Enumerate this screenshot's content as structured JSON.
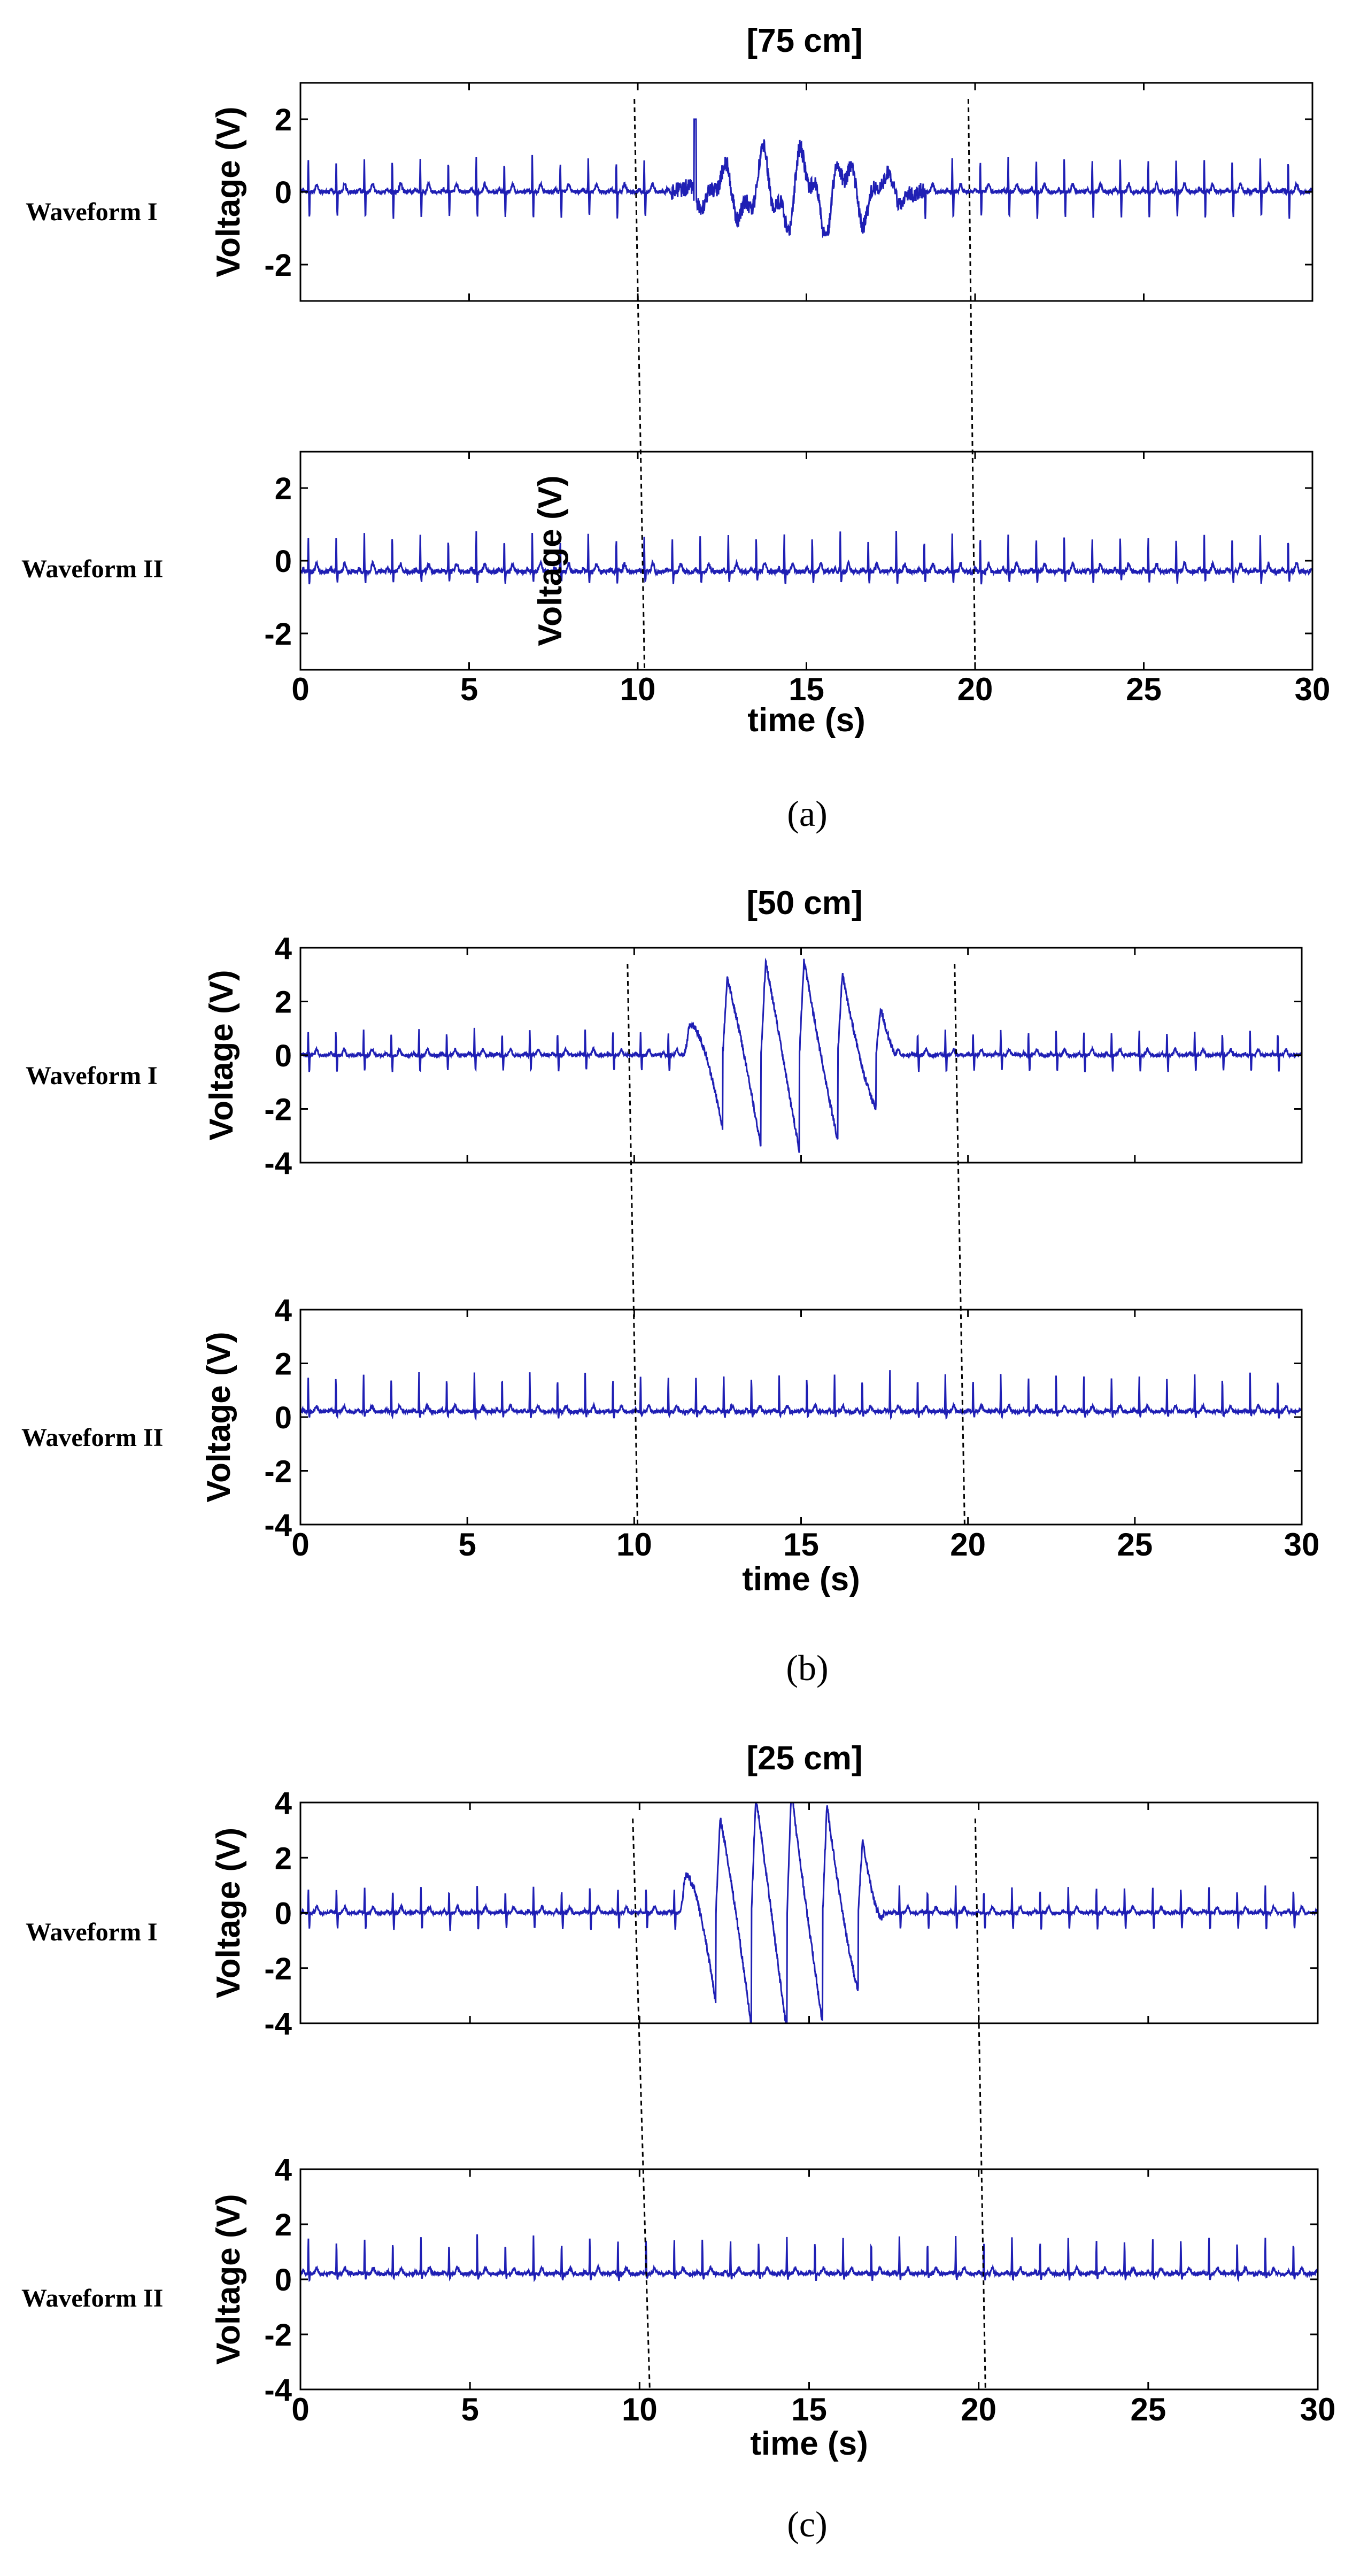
{
  "chart_data": [
    {
      "type": "line",
      "panel_label": "(a)",
      "title": "[75 cm]",
      "xlabel": "time (s)",
      "ylabel": "Voltage (V)",
      "xlim": [
        0,
        30
      ],
      "xticks": [
        0,
        5,
        10,
        15,
        20,
        25,
        30
      ],
      "x_tick_labels": [
        "0",
        "5",
        "10",
        "15",
        "20",
        "25",
        "30"
      ],
      "markers": [
        {
          "name": "marker-start",
          "top_x": 9.9,
          "bottom_x": 10.2
        },
        {
          "name": "marker-end",
          "top_x": 19.8,
          "bottom_x": 20.0
        }
      ],
      "series": [
        {
          "name": "Waveform I",
          "ylim": [
            -3,
            3
          ],
          "yticks": [
            -2,
            0,
            2
          ],
          "y_tick_labels": [
            "-2",
            "0",
            "2"
          ],
          "baseline": 0.0,
          "beat_interval_s": 0.83,
          "r_peak_v": 1.0,
          "s_dip_v": -0.7,
          "noise_v": 0.1,
          "artifact": {
            "start_s": 11.0,
            "end_s": 18.5,
            "min_v": -1.2,
            "max_v": 2.0,
            "pattern": "irregular"
          }
        },
        {
          "name": "Waveform II",
          "ylim": [
            -3,
            3
          ],
          "yticks": [
            -2,
            0,
            2
          ],
          "y_tick_labels": [
            "-2",
            "0",
            "2"
          ],
          "baseline": -0.3,
          "beat_interval_s": 0.83,
          "r_peak_v": 1.1,
          "s_dip_v": -0.3,
          "noise_v": 0.12,
          "artifact": null
        }
      ]
    },
    {
      "type": "line",
      "panel_label": "(b)",
      "title": "[50 cm]",
      "xlabel": "time (s)",
      "ylabel": "Voltage (V)",
      "xlim": [
        0,
        30
      ],
      "xticks": [
        0,
        5,
        10,
        15,
        20,
        25,
        30
      ],
      "x_tick_labels": [
        "0",
        "5",
        "10",
        "15",
        "20",
        "25",
        "30"
      ],
      "markers": [
        {
          "name": "marker-start",
          "top_x": 9.8,
          "bottom_x": 10.1
        },
        {
          "name": "marker-end",
          "top_x": 19.6,
          "bottom_x": 19.9
        }
      ],
      "series": [
        {
          "name": "Waveform I",
          "ylim": [
            -4,
            4
          ],
          "yticks": [
            -4,
            -2,
            0,
            2,
            4
          ],
          "y_tick_labels": [
            "-4",
            "-2",
            "0",
            "2",
            "4"
          ],
          "baseline": 0.0,
          "beat_interval_s": 0.83,
          "r_peak_v": 1.0,
          "s_dip_v": -0.6,
          "noise_v": 0.1,
          "artifact": {
            "start_s": 11.5,
            "end_s": 17.8,
            "min_v": -4.0,
            "max_v": 4.0,
            "pattern": "sawtooth",
            "cycle_s": 1.15,
            "amplitude_v": 3.6
          }
        },
        {
          "name": "Waveform II",
          "ylim": [
            -4,
            4
          ],
          "yticks": [
            -4,
            -2,
            0,
            2,
            4
          ],
          "y_tick_labels": [
            "-4",
            "-2",
            "0",
            "2",
            "4"
          ],
          "baseline": 0.2,
          "beat_interval_s": 0.83,
          "r_peak_v": 1.5,
          "s_dip_v": -0.2,
          "noise_v": 0.12,
          "artifact": null
        }
      ]
    },
    {
      "type": "line",
      "panel_label": "(c)",
      "title": "[25 cm]",
      "xlabel": "time (s)",
      "ylabel": "Voltage (V)",
      "xlim": [
        0,
        30
      ],
      "xticks": [
        0,
        5,
        10,
        15,
        20,
        25,
        30
      ],
      "x_tick_labels": [
        "0",
        "5",
        "10",
        "15",
        "20",
        "25",
        "30"
      ],
      "markers": [
        {
          "name": "marker-start",
          "top_x": 9.8,
          "bottom_x": 10.3
        },
        {
          "name": "marker-end",
          "top_x": 19.9,
          "bottom_x": 20.2
        }
      ],
      "series": [
        {
          "name": "Waveform I",
          "ylim": [
            -4,
            4
          ],
          "yticks": [
            -4,
            -2,
            0,
            2,
            4
          ],
          "y_tick_labels": [
            "-4",
            "-2",
            "0",
            "2",
            "4"
          ],
          "baseline": 0.0,
          "beat_interval_s": 0.83,
          "r_peak_v": 1.0,
          "s_dip_v": -0.6,
          "noise_v": 0.1,
          "artifact": {
            "start_s": 11.2,
            "end_s": 17.2,
            "min_v": -4.0,
            "max_v": 4.0,
            "pattern": "sawtooth",
            "cycle_s": 1.05,
            "amplitude_v": 4.4
          }
        },
        {
          "name": "Waveform II",
          "ylim": [
            -4,
            4
          ],
          "yticks": [
            -4,
            -2,
            0,
            2,
            4
          ],
          "y_tick_labels": [
            "-4",
            "-2",
            "0",
            "2",
            "4"
          ],
          "baseline": 0.2,
          "beat_interval_s": 0.83,
          "r_peak_v": 1.4,
          "s_dip_v": -0.2,
          "noise_v": 0.12,
          "artifact": null
        }
      ]
    }
  ],
  "style": {
    "trace_color": "#1f1fb4",
    "axis_color": "#000000",
    "marker_color": "#000000"
  }
}
